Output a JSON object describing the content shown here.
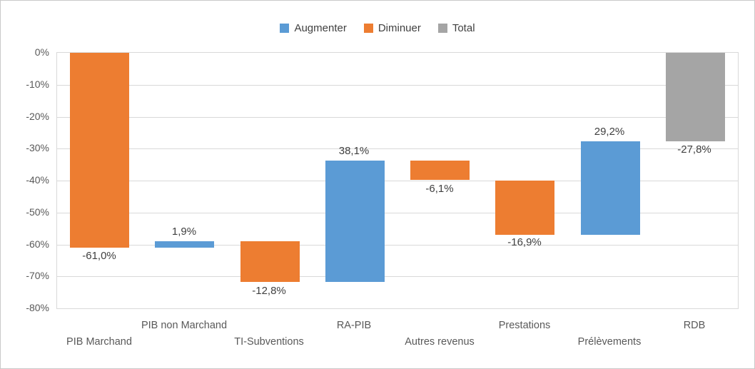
{
  "window": {
    "background_color": "#FFFFFF",
    "border_color": "#C9C9C9"
  },
  "chart_data": {
    "type": "bar",
    "subtype": "waterfall",
    "title": "",
    "xlabel": "",
    "ylabel": "",
    "categories": [
      "PIB Marchand",
      "PIB non Marchand",
      "TI-Subventions",
      "RA-PIB",
      "Autres revenus",
      "Prestations",
      "Prélèvements",
      "RDB"
    ],
    "values": [
      -61.0,
      1.9,
      -12.8,
      38.1,
      -6.1,
      -16.9,
      29.2,
      -27.8
    ],
    "data_labels": [
      "-61,0%",
      "1,9%",
      "-12,8%",
      "38,1%",
      "-6,1%",
      "-16,9%",
      "29,2%",
      "-27,8%"
    ],
    "series_role": [
      "Diminuer",
      "Augmenter",
      "Diminuer",
      "Augmenter",
      "Diminuer",
      "Diminuer",
      "Augmenter",
      "Total"
    ],
    "cumulative_start": [
      0,
      -61.0,
      -59.1,
      -71.9,
      -33.8,
      -39.9,
      -56.8,
      0
    ],
    "cumulative_end": [
      -61.0,
      -59.1,
      -71.9,
      -33.8,
      -39.9,
      -56.8,
      -27.6,
      -27.8
    ],
    "legend": [
      {
        "label": "Augmenter",
        "color": "#5B9BD5"
      },
      {
        "label": "Diminuer",
        "color": "#ED7D31"
      },
      {
        "label": "Total",
        "color": "#A5A5A5"
      }
    ],
    "colors": {
      "Augmenter": "#5B9BD5",
      "Diminuer": "#ED7D31",
      "Total": "#A5A5A5"
    },
    "y_ticks": [
      "0%",
      "-10%",
      "-20%",
      "-30%",
      "-40%",
      "-50%",
      "-60%",
      "-70%",
      "-80%"
    ],
    "y_tick_values": [
      0,
      -10,
      -20,
      -30,
      -40,
      -50,
      -60,
      -70,
      -80
    ],
    "ylim": [
      -80,
      0
    ],
    "grid": true,
    "gridline_color": "#D9D9D9",
    "axis_text_color": "#595959",
    "label_text_color": "#404040",
    "legend_position": "top"
  }
}
